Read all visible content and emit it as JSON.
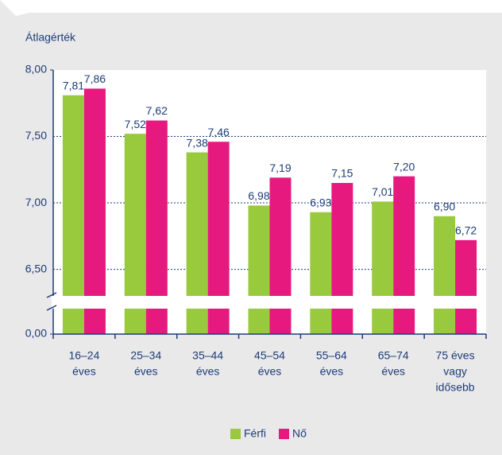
{
  "chart_data": {
    "type": "bar",
    "ylabel": "Átlagérték",
    "categories": [
      [
        "16–24",
        "éves"
      ],
      [
        "25–34",
        "éves"
      ],
      [
        "35–44",
        "éves"
      ],
      [
        "45–54",
        "éves"
      ],
      [
        "55–64",
        "éves"
      ],
      [
        "65–74",
        "éves"
      ],
      [
        "75 éves",
        "vagy",
        "idősebb"
      ]
    ],
    "series": [
      {
        "name": "Férfi",
        "color": "#99c93c",
        "values": [
          7.81,
          7.52,
          7.38,
          6.98,
          6.93,
          7.01,
          6.9
        ],
        "value_labels": [
          "7,81",
          "7,52",
          "7,38",
          "6,98",
          "6,93",
          "7,01",
          "6,90"
        ]
      },
      {
        "name": "Nő",
        "color": "#e6197f",
        "values": [
          7.86,
          7.62,
          7.46,
          7.19,
          7.15,
          7.2,
          6.72
        ],
        "value_labels": [
          "7,86",
          "7,62",
          "7,46",
          "7,19",
          "7,15",
          "7,20",
          "6,72"
        ]
      }
    ],
    "ylim": [
      6.3,
      8
    ],
    "yticks": [
      {
        "value": 0,
        "label": "0,00"
      },
      {
        "value": 6.5,
        "label": "6,50"
      },
      {
        "value": 7,
        "label": "7,00"
      },
      {
        "value": 7.5,
        "label": "7,50"
      },
      {
        "value": 8,
        "label": "8,00"
      }
    ],
    "axis_break": true,
    "grid": true,
    "legend": "bottom"
  }
}
